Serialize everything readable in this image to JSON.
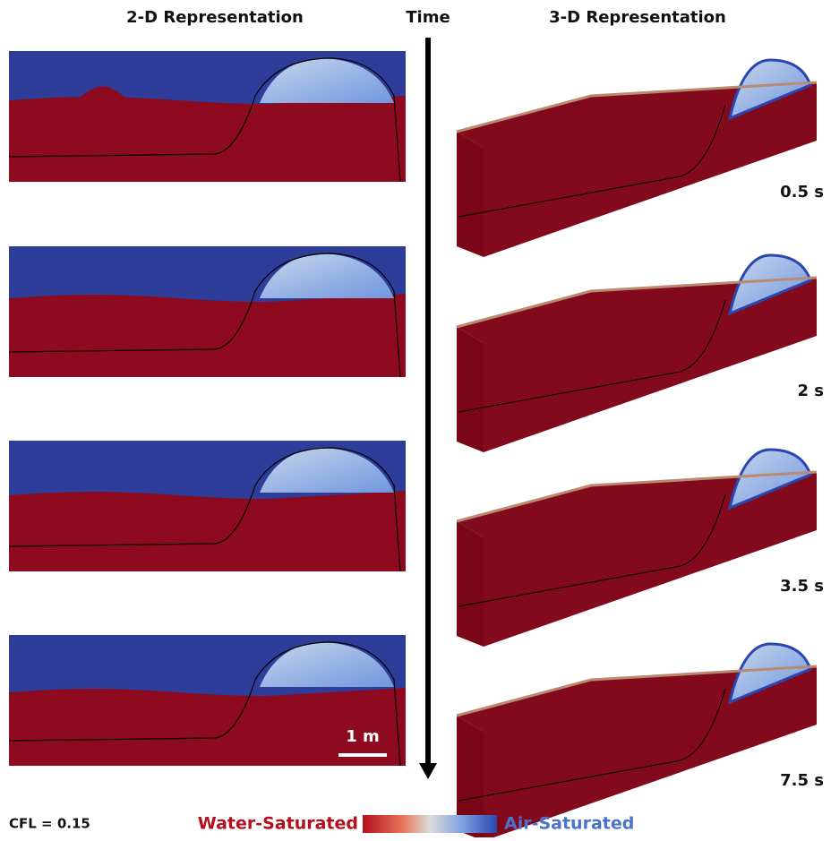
{
  "headers": {
    "left": "2-D Representation",
    "center": "Time",
    "right": "3-D Representation"
  },
  "times": [
    "0.5 s",
    "2 s",
    "3.5 s",
    "7.5 s"
  ],
  "scale_bar": "1 m",
  "cfl": "CFL = 0.15",
  "legend": {
    "left": "Water-Saturated",
    "right": "Air-Saturated"
  }
}
